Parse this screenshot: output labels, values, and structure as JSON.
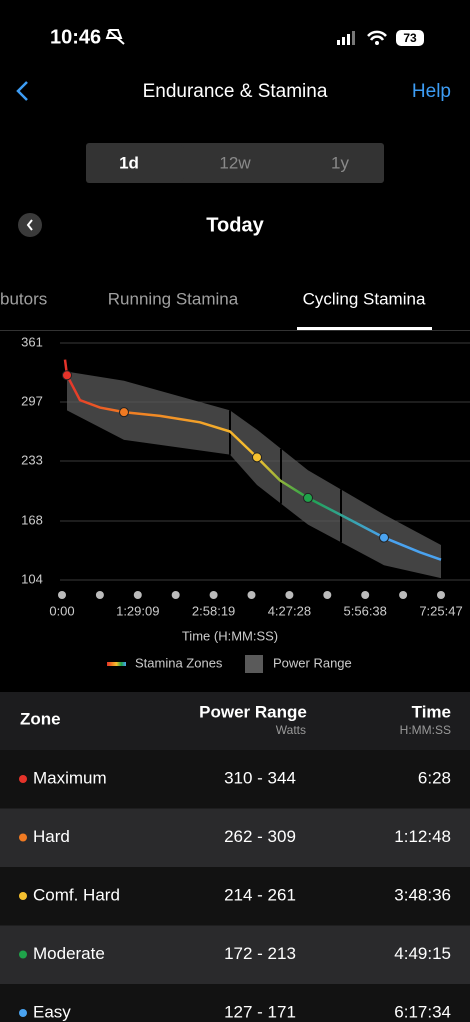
{
  "status_bar": {
    "time": "10:46",
    "battery": "73"
  },
  "header": {
    "title": "Endurance & Stamina",
    "help": "Help"
  },
  "range_tabs": [
    "1d",
    "12w",
    "1y"
  ],
  "date": "Today",
  "tabs": [
    "butors",
    "Running Stamina",
    "Cycling Stamina"
  ],
  "chart_data": {
    "type": "line",
    "xlabel": "Time (H:MM:SS)",
    "xlim": [
      0,
      26747
    ],
    "xticks": [
      {
        "value": 0,
        "label": "0:00"
      },
      {
        "value": 5349,
        "label": "1:29:09"
      },
      {
        "value": 10699,
        "label": "2:58:19"
      },
      {
        "value": 16048,
        "label": "4:27:28"
      },
      {
        "value": 21398,
        "label": "5:56:38"
      },
      {
        "value": 26747,
        "label": "7:25:47"
      }
    ],
    "ylim": [
      104,
      361
    ],
    "yticks": [
      104,
      168,
      233,
      297,
      361
    ],
    "grid": true,
    "series": [
      {
        "name": "Stamina Zones",
        "colors": [
          "#e5332a",
          "#f07a22",
          "#f5c02f",
          "#1fa34a",
          "#4aa3f0"
        ],
        "marker_indices": [
          1,
          4,
          8,
          10,
          12
        ],
        "x": [
          212,
          353,
          1270,
          2682,
          4375,
          6916,
          9739,
          11856,
          13762,
          15385,
          17361,
          19619,
          22724,
          25265,
          26747
        ],
        "values": [
          343,
          326,
          299,
          291,
          286,
          282,
          275,
          265,
          237,
          212,
          193,
          175,
          150,
          134,
          126
        ]
      }
    ],
    "band": {
      "name": "Power Range",
      "color": "#5a5a5a",
      "x": [
        353,
        4375,
        11856,
        13762,
        17361,
        22724,
        26747
      ],
      "upper": [
        330,
        320,
        288,
        267,
        223,
        175,
        142
      ],
      "lower": [
        288,
        256,
        240,
        207,
        164,
        120,
        106
      ]
    },
    "zone_boundaries_x": [
      11856,
      15455,
      19690
    ]
  },
  "table": {
    "header": {
      "zone": "Zone",
      "power": "Power Range",
      "power_unit": "Watts",
      "time": "Time",
      "time_unit": "H:MM:SS"
    },
    "rows": [
      {
        "color": "#e5332a",
        "zone": "Maximum",
        "power": "310 - 344",
        "time": "6:28"
      },
      {
        "color": "#f07a22",
        "zone": "Hard",
        "power": "262 - 309",
        "time": "1:12:48"
      },
      {
        "color": "#f5c02f",
        "zone": "Comf. Hard",
        "power": "214 - 261",
        "time": "3:48:36"
      },
      {
        "color": "#1fa34a",
        "zone": "Moderate",
        "power": "172 - 213",
        "time": "4:49:15"
      },
      {
        "color": "#4aa3f0",
        "zone": "Easy",
        "power": "127 - 171",
        "time": "6:17:34"
      }
    ]
  }
}
